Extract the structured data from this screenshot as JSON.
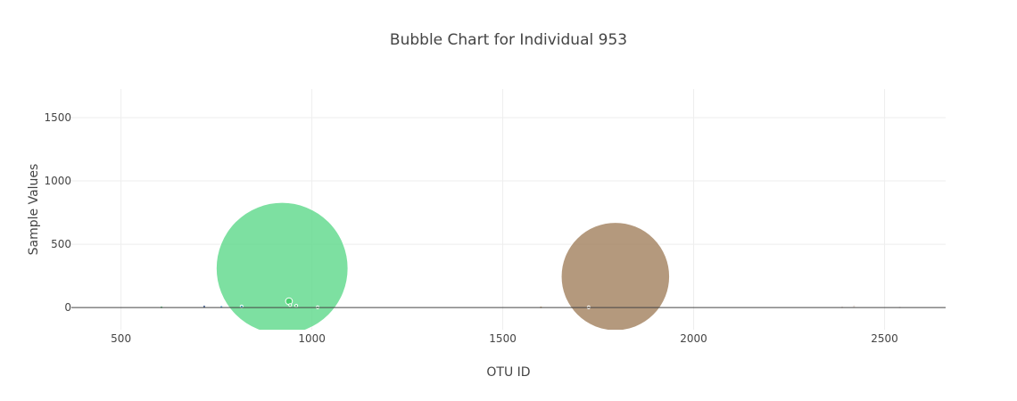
{
  "chart_data": {
    "type": "scatter",
    "title": "Bubble Chart for Individual 953",
    "xlabel": "OTU ID",
    "ylabel": "Sample Values",
    "xlim": [
      370,
      2660
    ],
    "ylim": [
      -175,
      1725
    ],
    "x_ticks": [
      500,
      1000,
      1500,
      2000,
      2500
    ],
    "x_tick_labels": [
      "500",
      "1000",
      "1500",
      "2000",
      "2500"
    ],
    "y_ticks": [
      0,
      500,
      1000,
      1500
    ],
    "y_tick_labels": [
      "0",
      "500",
      "1000",
      "1500"
    ],
    "grid": true,
    "legend": false,
    "series": [
      {
        "points": [
          {
            "x": 922,
            "y": 310,
            "size": 1040,
            "color": "#5dd88a"
          },
          {
            "x": 1795,
            "y": 245,
            "size": 855,
            "color": "#a17f5c"
          },
          {
            "x": 940,
            "y": 50,
            "size": 54,
            "color": "#3ccc64"
          },
          {
            "x": 943,
            "y": 20,
            "size": 20,
            "color": "#3ccc64"
          },
          {
            "x": 959,
            "y": 14,
            "size": 15,
            "color": "#3ccc64"
          },
          {
            "x": 718,
            "y": 8,
            "size": 6,
            "color": "#2e4e86"
          },
          {
            "x": 816,
            "y": 8,
            "size": 6,
            "color": "#2bb3c0"
          },
          {
            "x": 763,
            "y": 5,
            "size": 4,
            "color": "#3b8fd0"
          },
          {
            "x": 606,
            "y": 2,
            "size": 3,
            "color": "#60c080"
          },
          {
            "x": 1015,
            "y": 2,
            "size": 3,
            "color": "#6dd890"
          },
          {
            "x": 1600,
            "y": 2,
            "size": 4,
            "color": "#d2b48c"
          },
          {
            "x": 1725,
            "y": 2,
            "size": 4,
            "color": "#c4a882"
          },
          {
            "x": 2420,
            "y": 10,
            "size": 10,
            "color": "#e3d6cf"
          },
          {
            "x": 2389,
            "y": 2,
            "size": 3,
            "color": "#e6dcd6"
          },
          {
            "x": 2540,
            "y": 1,
            "size": 2,
            "color": "#e8e4e4"
          }
        ]
      }
    ]
  }
}
